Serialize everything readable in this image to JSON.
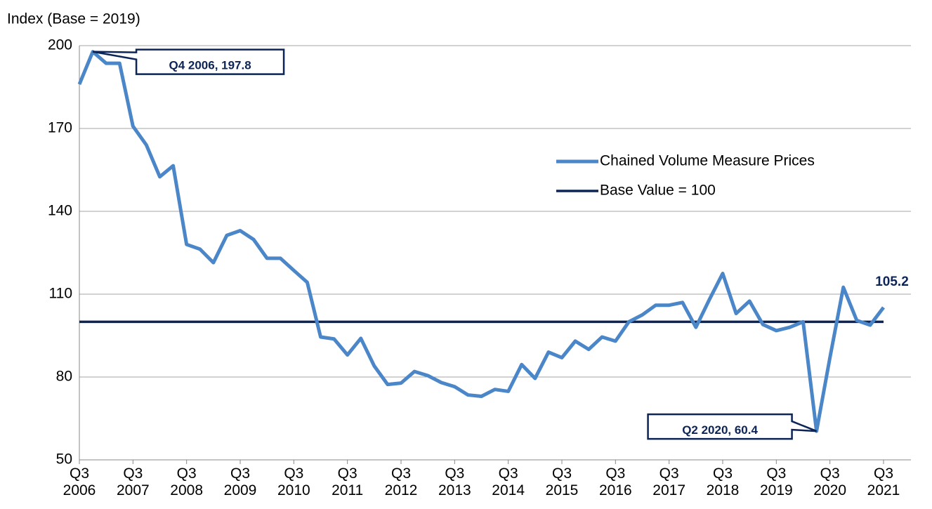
{
  "chart_data": {
    "type": "line",
    "y_label": "Index (Base = 2019)",
    "categories": [
      "Q3\n2006",
      null,
      null,
      null,
      "Q3\n2007",
      null,
      null,
      null,
      "Q3\n2008",
      null,
      null,
      null,
      "Q3\n2009",
      null,
      null,
      null,
      "Q3\n2010",
      null,
      null,
      null,
      "Q3\n2011",
      null,
      null,
      null,
      "Q3\n2012",
      null,
      null,
      null,
      "Q3\n2013",
      null,
      null,
      null,
      "Q3\n2014",
      null,
      null,
      null,
      "Q3\n2015",
      null,
      null,
      null,
      "Q3\n2016",
      null,
      null,
      null,
      "Q3\n2017",
      null,
      null,
      null,
      "Q3\n2018",
      null,
      null,
      null,
      "Q3\n2019",
      null,
      null,
      null,
      "Q3\n2020",
      null,
      null,
      null,
      "Q3\n2021"
    ],
    "series": [
      {
        "name": "Chained Volume Measure Prices",
        "color": "#4a86c8",
        "values": [
          186,
          197.8,
          193.6,
          193.6,
          170.8,
          164,
          152.5,
          156.5,
          128,
          126.3,
          121.4,
          131.3,
          133,
          129.8,
          123,
          123,
          118.6,
          114.3,
          94.5,
          93.8,
          88,
          94,
          84,
          77.3,
          77.8,
          82,
          80.5,
          78,
          76.5,
          73.5,
          73,
          75.5,
          74.8,
          84.5,
          79.5,
          89,
          87,
          93,
          90,
          94.5,
          93,
          100,
          102.5,
          106,
          106,
          107,
          98,
          108,
          117.5,
          103,
          107.5,
          99,
          96.8,
          98,
          100,
          60.4,
          87,
          112.5,
          100.5,
          98.8,
          105.2
        ],
        "value_labels": [
          null,
          "Q4 2006, 197.8",
          null,
          null,
          null,
          null,
          null,
          null,
          null,
          null,
          null,
          null,
          null,
          null,
          null,
          null,
          null,
          null,
          null,
          null,
          null,
          null,
          null,
          null,
          null,
          null,
          null,
          null,
          null,
          null,
          null,
          null,
          null,
          null,
          null,
          null,
          null,
          null,
          null,
          null,
          null,
          null,
          null,
          null,
          null,
          null,
          null,
          null,
          null,
          null,
          null,
          null,
          null,
          null,
          null,
          "Q2 2020, 60.4",
          null,
          null,
          null,
          null,
          "105.2"
        ]
      }
    ],
    "reference_line": {
      "name": "Base Value = 100",
      "value": 100,
      "color": "#0d2456"
    },
    "ylim": [
      50,
      200
    ],
    "yticks": [
      50,
      80,
      110,
      140,
      170,
      200
    ],
    "grid": true,
    "legend": "right"
  }
}
